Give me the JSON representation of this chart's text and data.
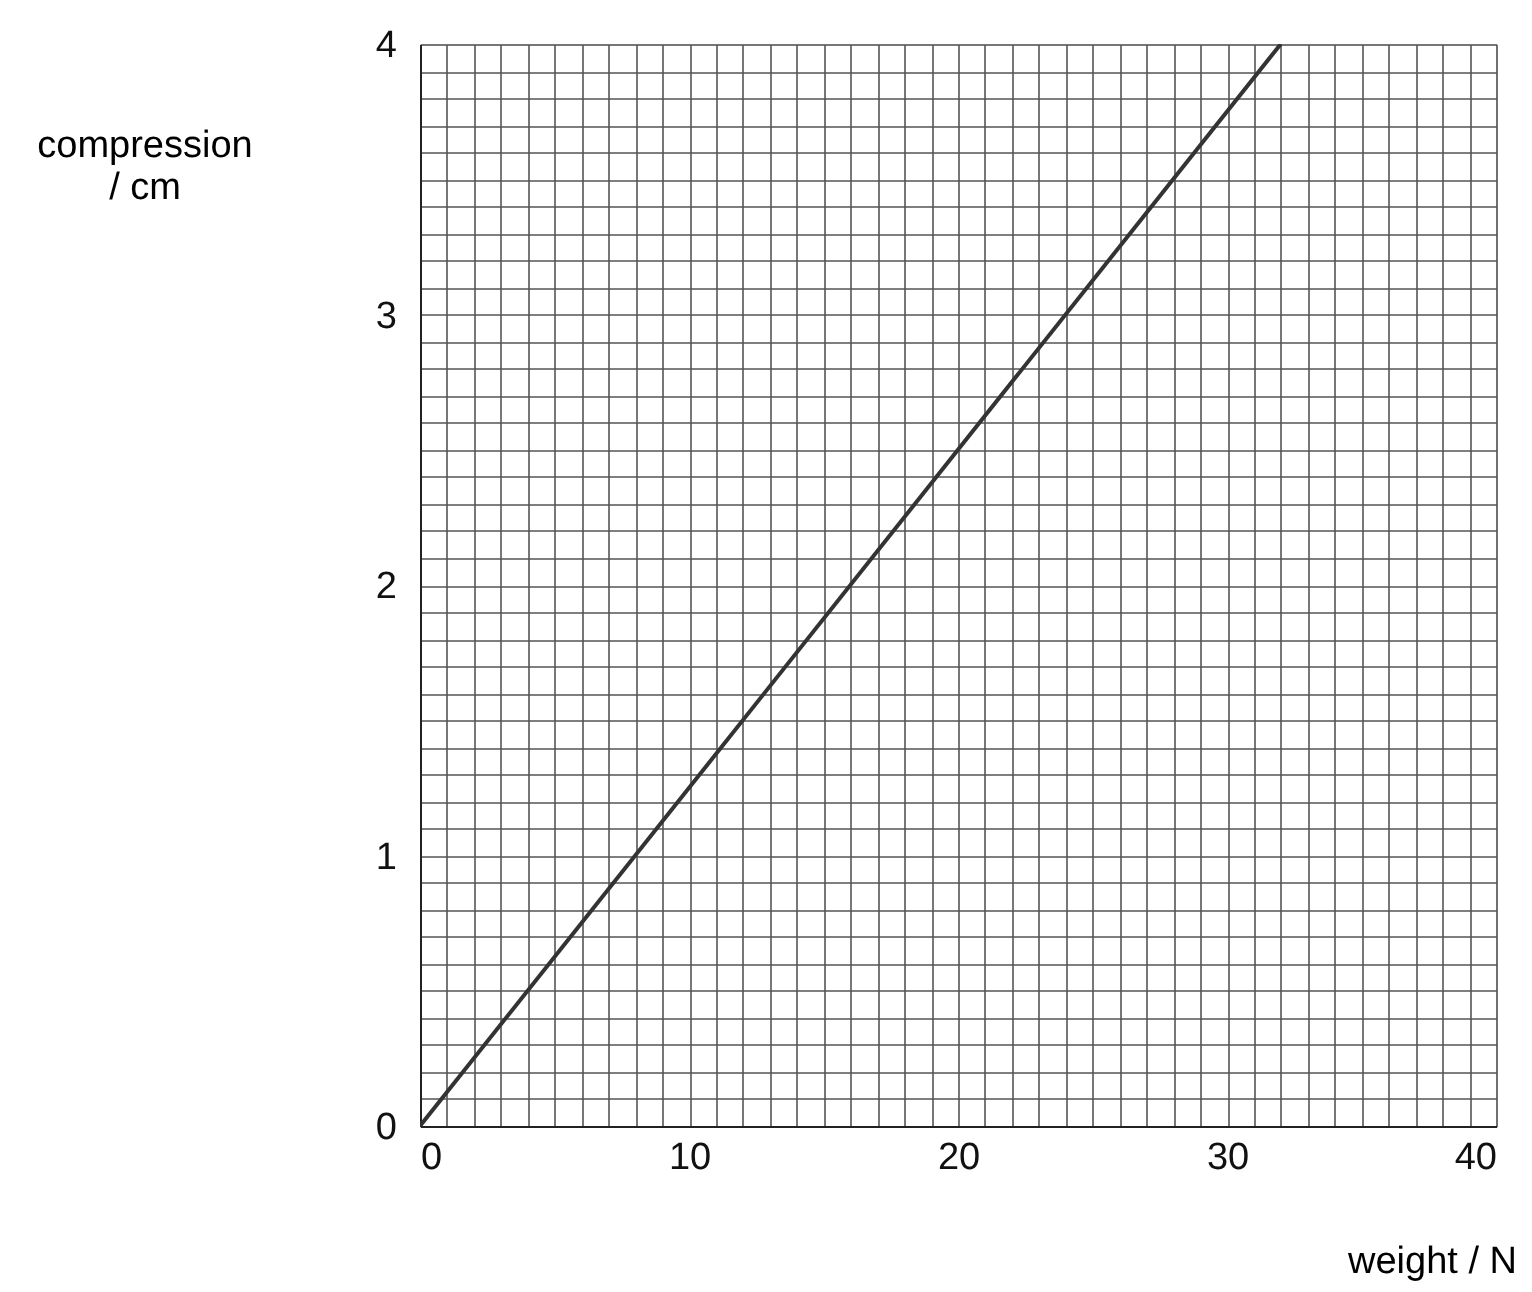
{
  "chart_data": {
    "type": "line",
    "xlabel": "weight / N",
    "ylabel": "compression / cm",
    "series": [
      {
        "color": "#333333",
        "x": [
          0,
          32
        ],
        "values": [
          0,
          4
        ]
      }
    ],
    "xlim": [
      0,
      40
    ],
    "ylim": [
      0,
      4
    ],
    "xticks": [
      0,
      {
        "value": 1,
        "label": null
      },
      {
        "value": 2,
        "label": null
      },
      {
        "value": 3,
        "label": null
      },
      {
        "value": 4,
        "label": null
      },
      {
        "value": 5,
        "label": null
      },
      {
        "value": 6,
        "label": null
      },
      {
        "value": 7,
        "label": null
      },
      {
        "value": 8,
        "label": null
      },
      {
        "value": 9,
        "label": null
      },
      10,
      {
        "value": 11,
        "label": null
      },
      {
        "value": 12,
        "label": null
      },
      {
        "value": 13,
        "label": null
      },
      {
        "value": 14,
        "label": null
      },
      {
        "value": 15,
        "label": null
      },
      {
        "value": 16,
        "label": null
      },
      {
        "value": 17,
        "label": null
      },
      {
        "value": 18,
        "label": null
      },
      {
        "value": 19,
        "label": null
      },
      20,
      {
        "value": 21,
        "label": null
      },
      {
        "value": 22,
        "label": null
      },
      {
        "value": 23,
        "label": null
      },
      {
        "value": 24,
        "label": null
      },
      {
        "value": 25,
        "label": null
      },
      {
        "value": 26,
        "label": null
      },
      {
        "value": 27,
        "label": null
      },
      {
        "value": 28,
        "label": null
      },
      {
        "value": 29,
        "label": null
      },
      30,
      {
        "value": 31,
        "label": null
      },
      {
        "value": 32,
        "label": null
      },
      {
        "value": 33,
        "label": null
      },
      {
        "value": 34,
        "label": null
      },
      {
        "value": 35,
        "label": null
      },
      {
        "value": 36,
        "label": null
      },
      {
        "value": 37,
        "label": null
      },
      {
        "value": 38,
        "label": null
      },
      {
        "value": 39,
        "label": null
      },
      40
    ],
    "yticks": [
      0,
      {
        "value": 0.1,
        "label": null
      },
      {
        "value": 0.2,
        "label": null
      },
      {
        "value": 0.3,
        "label": null
      },
      {
        "value": 0.4,
        "label": null
      },
      {
        "value": 0.5,
        "label": null
      },
      {
        "value": 0.6,
        "label": null
      },
      {
        "value": 0.7,
        "label": null
      },
      {
        "value": 0.8,
        "label": null
      },
      {
        "value": 0.9,
        "label": null
      },
      1,
      {
        "value": 1.1,
        "label": null
      },
      {
        "value": 1.2,
        "label": null
      },
      {
        "value": 1.3,
        "label": null
      },
      {
        "value": 1.4,
        "label": null
      },
      {
        "value": 1.5,
        "label": null
      },
      {
        "value": 1.6,
        "label": null
      },
      {
        "value": 1.7,
        "label": null
      },
      {
        "value": 1.8,
        "label": null
      },
      {
        "value": 1.9,
        "label": null
      },
      2,
      {
        "value": 2.1,
        "label": null
      },
      {
        "value": 2.2,
        "label": null
      },
      {
        "value": 2.3,
        "label": null
      },
      {
        "value": 2.4,
        "label": null
      },
      {
        "value": 2.5,
        "label": null
      },
      {
        "value": 2.6,
        "label": null
      },
      {
        "value": 2.7,
        "label": null
      },
      {
        "value": 2.8,
        "label": null
      },
      {
        "value": 2.9,
        "label": null
      },
      3,
      {
        "value": 3.1,
        "label": null
      },
      {
        "value": 3.2,
        "label": null
      },
      {
        "value": 3.3,
        "label": null
      },
      {
        "value": 3.4,
        "label": null
      },
      {
        "value": 3.5,
        "label": null
      },
      {
        "value": 3.6,
        "label": null
      },
      {
        "value": 3.7,
        "label": null
      },
      {
        "value": 3.8,
        "label": null
      },
      {
        "value": 3.9,
        "label": null
      },
      4
    ],
    "grid": true,
    "marker": "none",
    "line_style": "solid"
  }
}
